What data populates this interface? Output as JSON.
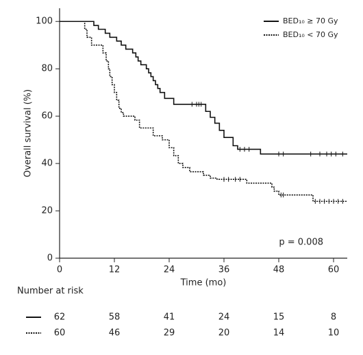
{
  "chart_data": {
    "type": "step",
    "x_label": "Time (mo)",
    "y_label": "Overall survival (%)",
    "annotation": "p = 0.008",
    "xlim": [
      0,
      63
    ],
    "ylim": [
      0,
      105
    ],
    "xticks": [
      0,
      12,
      24,
      36,
      48,
      60
    ],
    "yticks": [
      0,
      20,
      40,
      60,
      80,
      100
    ],
    "legend": "top-right",
    "series": [
      {
        "name": "BED₁₀ ≥ 70 Gy",
        "color": "#111111",
        "line_style": "solid",
        "x": [
          0,
          7.5,
          8.5,
          10,
          11,
          12.5,
          13.5,
          14.5,
          16,
          16.7,
          17.2,
          17.8,
          19,
          19.5,
          20,
          20.5,
          21,
          21.5,
          22,
          23,
          25,
          32,
          33,
          34,
          35,
          36,
          38,
          39,
          44,
          63
        ],
        "values": [
          100,
          98.3,
          96.7,
          95,
          93.3,
          91.7,
          90,
          88.3,
          86.7,
          85,
          83.3,
          81.7,
          80,
          78.3,
          76.7,
          75,
          73.3,
          71.7,
          70,
          67.5,
          65,
          62,
          59.5,
          57,
          54,
          51,
          47.5,
          46,
          44,
          44
        ],
        "censored": {
          "x": [
            29,
            30,
            30.5,
            31,
            39.5,
            40.5,
            41.5,
            48,
            49,
            55,
            57,
            58.5,
            59.5,
            60.5,
            62
          ],
          "values": [
            65,
            65,
            65,
            65,
            46,
            46,
            46,
            44,
            44,
            44,
            44,
            44,
            44,
            44,
            44
          ]
        }
      },
      {
        "name": "BED₁₀ < 70 Gy",
        "color": "#111111",
        "line_style": "dotted",
        "x": [
          0,
          5.5,
          6,
          7,
          9.5,
          10.2,
          10.7,
          11,
          11.5,
          12,
          12.5,
          13,
          13.5,
          14,
          16.5,
          17.5,
          20.5,
          22.5,
          24,
          25,
          26,
          27,
          28.5,
          31.5,
          33,
          34.5,
          41,
          46.5,
          47,
          48,
          55.5,
          63
        ],
        "values": [
          100,
          96.7,
          93.3,
          90,
          86.7,
          83.3,
          80,
          76.7,
          73.3,
          70,
          66.7,
          63.3,
          61.5,
          60,
          58.3,
          55,
          51.7,
          50,
          46.7,
          43.3,
          40,
          38.3,
          36.5,
          35,
          33.8,
          33.3,
          31.7,
          30,
          28.3,
          26.7,
          24,
          24
        ],
        "censored": {
          "x": [
            36,
            37,
            38.5,
            39.5,
            48.5,
            49,
            56,
            57,
            58,
            59,
            60,
            61,
            62
          ],
          "values": [
            33.3,
            33.3,
            33.3,
            33.3,
            26.7,
            26.7,
            24,
            24,
            24,
            24,
            24,
            24,
            24
          ]
        }
      }
    ],
    "risk_table": {
      "title": "Number at risk",
      "rows": [
        [
          62,
          58,
          41,
          24,
          15,
          8
        ],
        [
          60,
          46,
          29,
          20,
          14,
          10
        ]
      ]
    }
  }
}
